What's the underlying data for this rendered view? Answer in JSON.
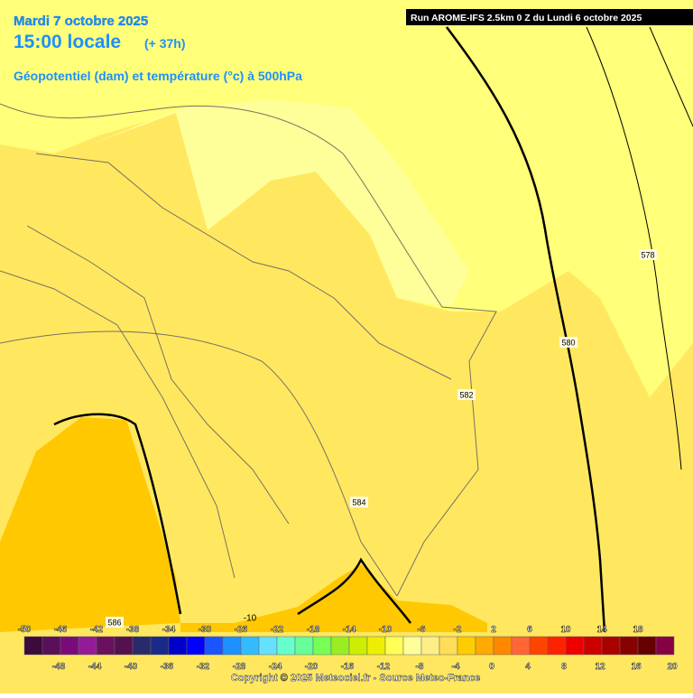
{
  "header": {
    "date": "Mardi 7 octobre 2025",
    "time": "15:00 locale",
    "lead": "(+ 37h)",
    "subtitle": "Géopotentiel (dam) et température (°c) à 500hPa",
    "run": "Run AROME-IFS 2.5km 0 Z du Lundi 6 octobre 2025"
  },
  "contour_labels": [
    578,
    580,
    582,
    584,
    586
  ],
  "temperature_labels": [
    -10
  ],
  "colorbar": {
    "ticks": [
      -50,
      -48,
      -46,
      -44,
      -42,
      -40,
      -38,
      -36,
      -34,
      -32,
      -30,
      -28,
      -26,
      -24,
      -22,
      -20,
      -18,
      -16,
      -14,
      -12,
      -10,
      -8,
      -6,
      -4,
      -2,
      0,
      2,
      4,
      6,
      8,
      10,
      12,
      14,
      16,
      18,
      20
    ],
    "colors": [
      "#3c0a3c",
      "#5a0f5a",
      "#7a0a7a",
      "#951a95",
      "#6a1060",
      "#55104f",
      "#2a2a6a",
      "#1a2a8a",
      "#0000cc",
      "#0000ff",
      "#1a55ff",
      "#1e90ff",
      "#33bbff",
      "#66e0ff",
      "#66ffcc",
      "#66ff99",
      "#77ff55",
      "#99ee22",
      "#ccee00",
      "#eeee00",
      "#ffff55",
      "#ffff99",
      "#ffee88",
      "#ffdd55",
      "#ffcc00",
      "#ffaa00",
      "#ff8800",
      "#ff6633",
      "#ff4400",
      "#ff2200",
      "#ee0000",
      "#cc0000",
      "#aa0000",
      "#880000",
      "#660000",
      "#880044"
    ]
  },
  "copyright": "Copyright © 2025 Meteociel.fr - Source Meteo-France"
}
